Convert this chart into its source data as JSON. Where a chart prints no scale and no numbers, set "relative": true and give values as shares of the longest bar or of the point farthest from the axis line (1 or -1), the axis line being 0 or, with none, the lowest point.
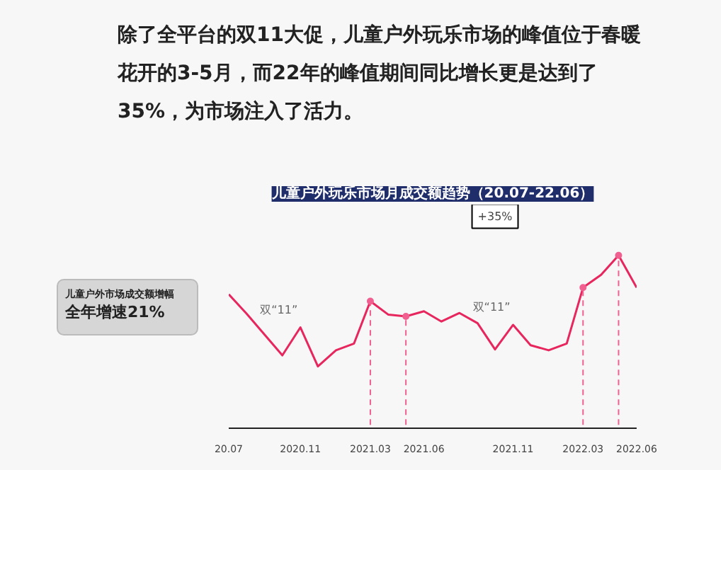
{
  "chart_data": {
    "type": "line",
    "title": "儿童户外玩乐市场月成交额趋势（20.07-22.06）",
    "subtitle": "除了全平台的双11大促，儿童户外玩乐市场的峰值位于春暖花开的3-5月，而22年的峰值期间同比增长更是达到了35%，为市场注入了活力。",
    "relative": true,
    "x": [
      "2020-07",
      "2020-08",
      "2020-09",
      "2020-10",
      "2020-11",
      "2020-12",
      "2021-01",
      "2021-02",
      "2021-03",
      "2021-04",
      "2021-05",
      "2021-06",
      "2021-07",
      "2021-08",
      "2021-09",
      "2021-10",
      "2021-11",
      "2021-12",
      "2022-01",
      "2022-02",
      "2022-03",
      "2022-04",
      "2022-05",
      "2022-06"
    ],
    "series": [
      {
        "color": "#e8265e",
        "values": [
          0.77,
          0.655,
          0.53,
          0.41,
          0.575,
          0.345,
          0.44,
          0.48,
          0.73,
          0.65,
          0.64,
          0.67,
          0.61,
          0.66,
          0.6,
          0.445,
          0.59,
          0.47,
          0.44,
          0.48,
          0.81,
          0.885,
          1,
          0.81
        ]
      }
    ],
    "xlim": [
      "2020-07",
      "2022-06"
    ],
    "xticks": [
      {
        "value": "2020-07",
        "label": "20.07"
      },
      {
        "value": "2020-11",
        "label": "2020.11"
      },
      {
        "value": "2021-03",
        "label": "2021.03"
      },
      {
        "value": "2021-06",
        "label": "2021.06"
      },
      {
        "value": "2021-11",
        "label": "2021.11"
      },
      {
        "value": "2022-03",
        "label": "2022.03"
      },
      {
        "value": "2022-06",
        "label": "2022.06"
      }
    ],
    "ref_lines": [
      {
        "axis": "x",
        "value": "2021-03",
        "label": null,
        "color": "#f06090",
        "line_style": "dashed"
      },
      {
        "axis": "x",
        "value": "2021-05",
        "label": null,
        "color": "#f06090",
        "line_style": "dashed"
      },
      {
        "axis": "x",
        "value": "2022-03",
        "label": null,
        "color": "#f06090",
        "line_style": "dashed"
      },
      {
        "axis": "x",
        "value": "2022-05",
        "label": null,
        "color": "#f06090",
        "line_style": "dashed"
      }
    ],
    "annotations": [
      {
        "text": "双“11”",
        "x": "2020-11",
        "y": 0.575
      },
      {
        "text": "双“11”",
        "x": "2021-11",
        "y": 0.59
      },
      "+35%",
      "儿童户外市场成交额增幅",
      "全年增速21%"
    ],
    "grid": false
  }
}
